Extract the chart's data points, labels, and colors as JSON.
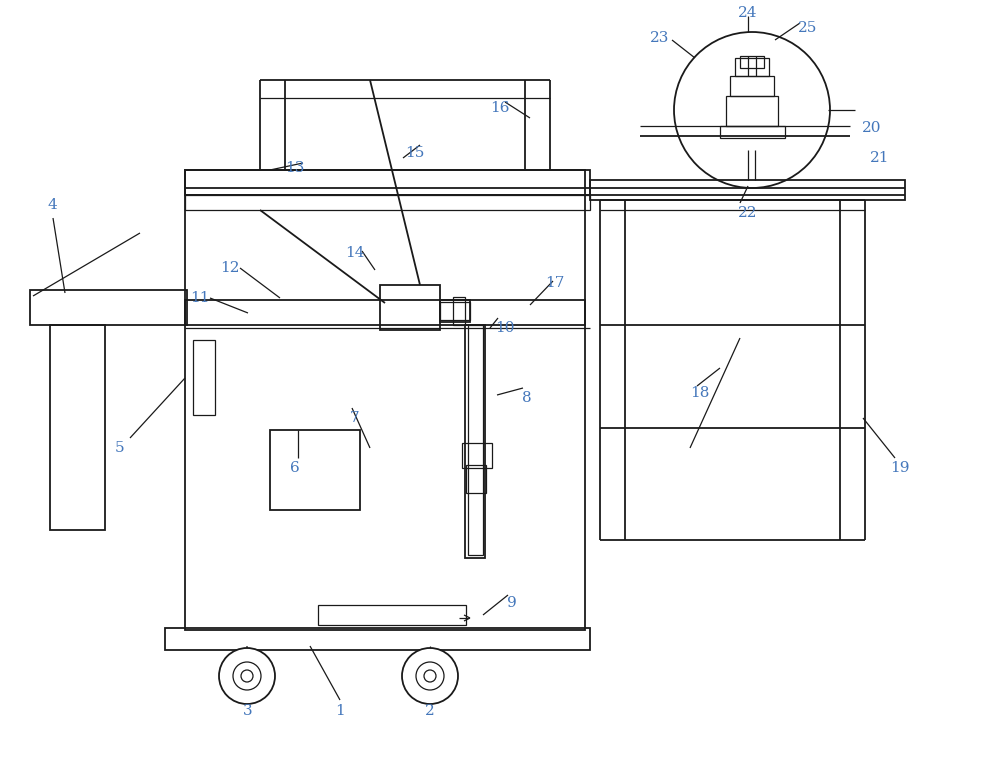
{
  "bg_color": "#ffffff",
  "line_color": "#1a1a1a",
  "label_color": "#4477bb",
  "figsize": [
    10.0,
    7.58
  ],
  "dpi": 100
}
